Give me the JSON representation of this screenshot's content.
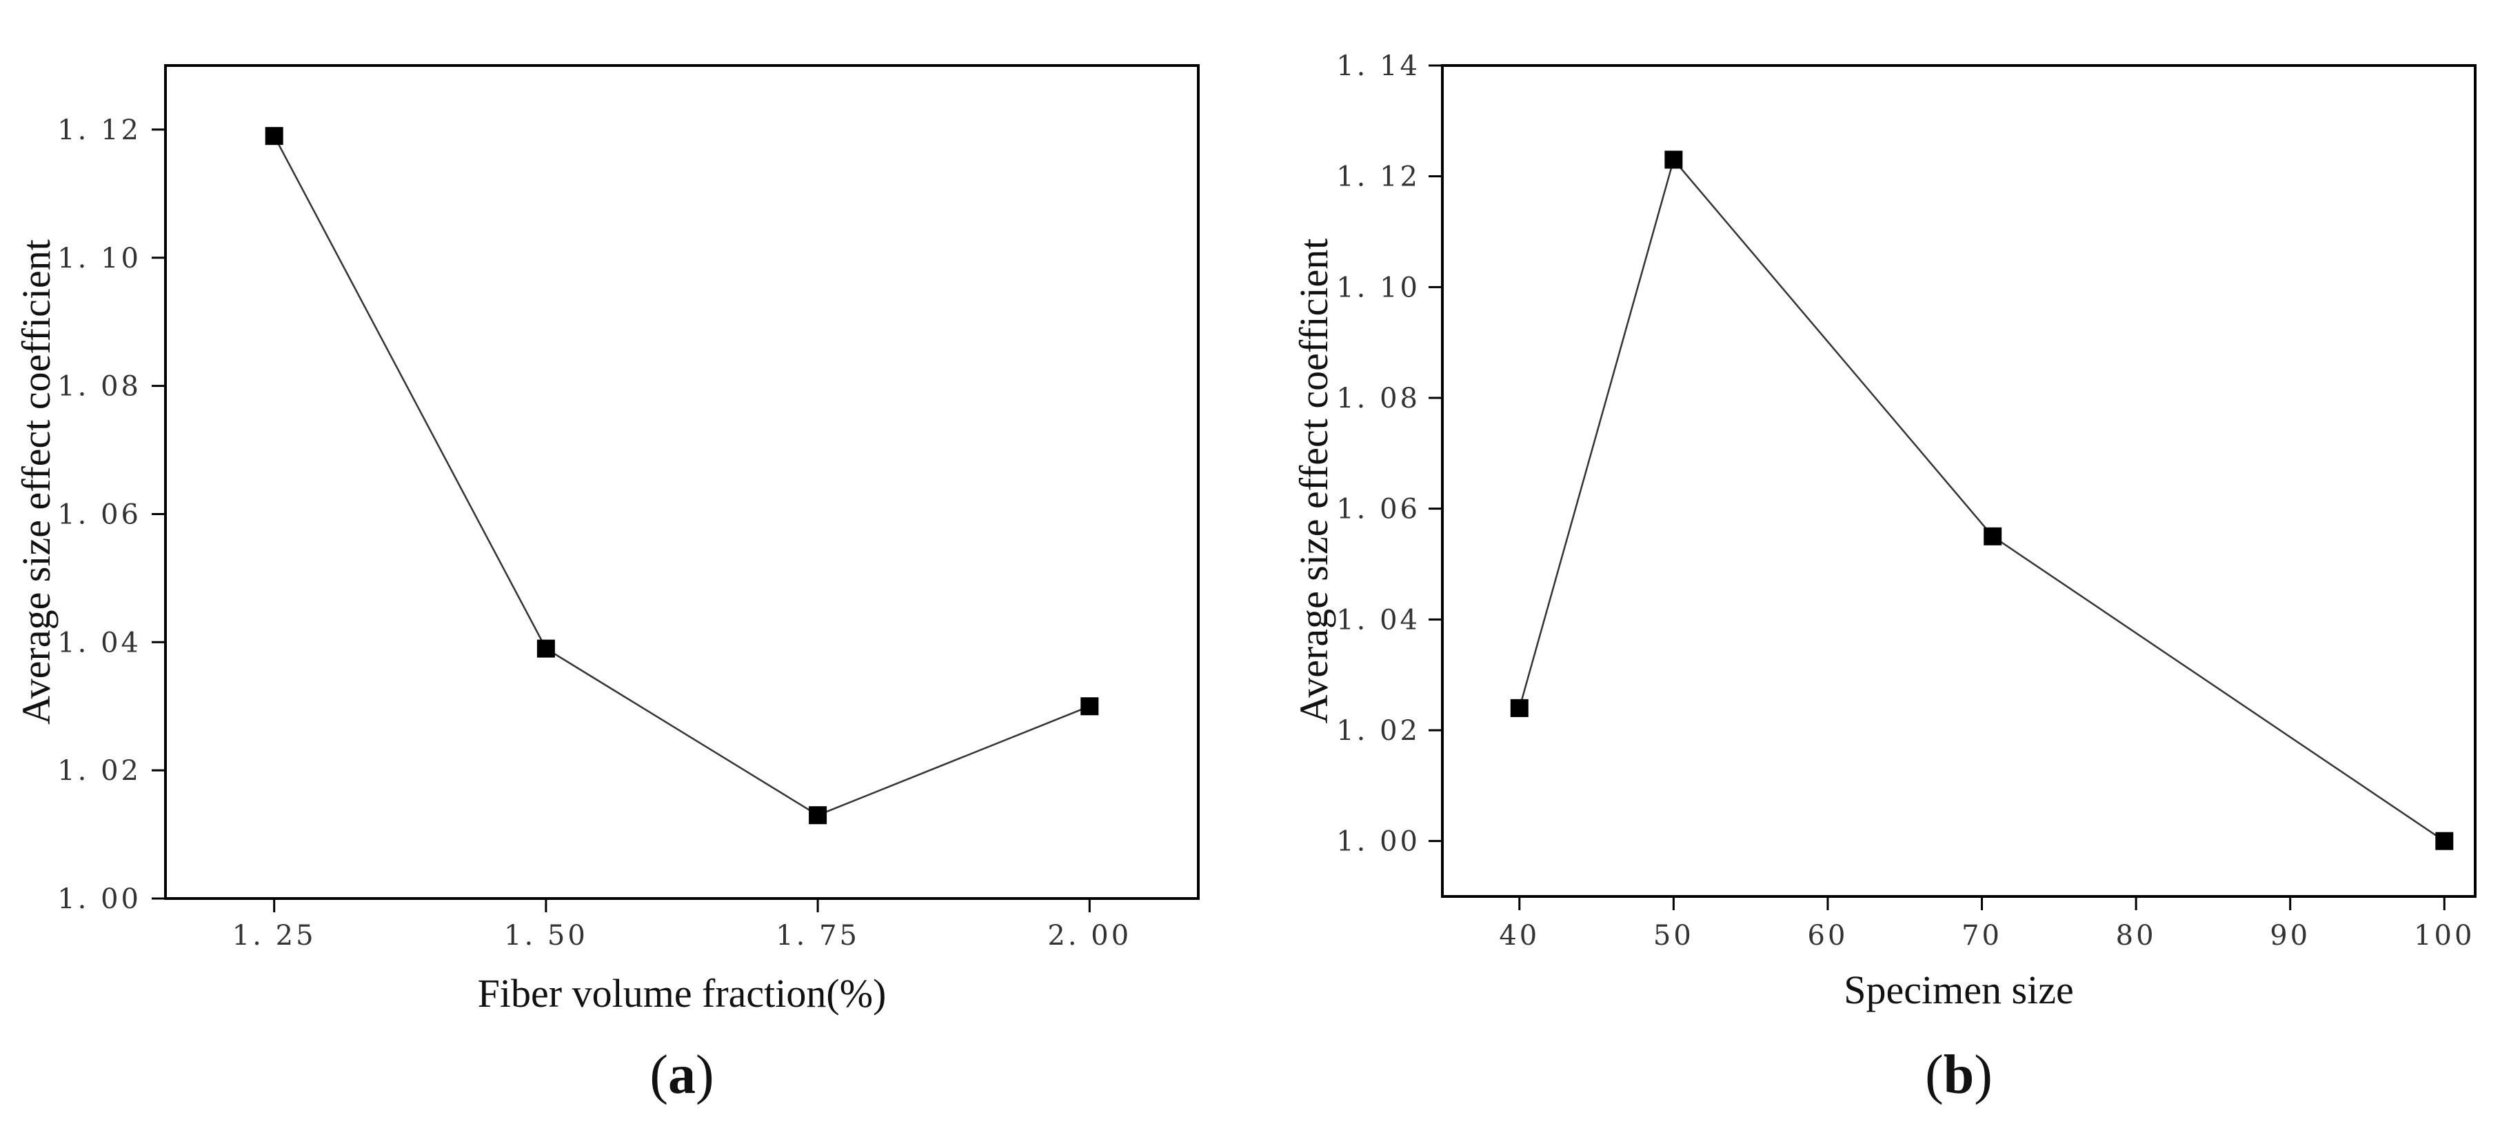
{
  "chart_data": [
    {
      "type": "line",
      "panel_label": "a",
      "title": "",
      "xlabel": "Fiber volume fraction(%)",
      "ylabel": "Average size effect coefficient",
      "x_tick_labels": [
        "1. 25",
        "1. 50",
        "1. 75",
        "2. 00"
      ],
      "y_tick_labels": [
        "1. 00",
        "1. 02",
        "1. 04",
        "1. 06",
        "1. 08",
        "1. 10",
        "1. 12"
      ],
      "x_ticks": [
        1.25,
        1.5,
        1.75,
        2.0
      ],
      "y_ticks": [
        1.0,
        1.02,
        1.04,
        1.06,
        1.08,
        1.1,
        1.12
      ],
      "xlim": [
        1.15,
        2.1
      ],
      "ylim": [
        1.0,
        1.13
      ],
      "grid": false,
      "legend": false,
      "marker": "square",
      "series": [
        {
          "x": [
            1.25,
            1.5,
            1.75,
            2.0
          ],
          "values": [
            1.119,
            1.039,
            1.013,
            1.03
          ]
        }
      ]
    },
    {
      "type": "line",
      "panel_label": "b",
      "title": "",
      "xlabel": "Specimen size",
      "ylabel": "Average size effect coefficient",
      "x_tick_labels": [
        "40",
        "50",
        "60",
        "70",
        "80",
        "90",
        "100"
      ],
      "y_tick_labels": [
        "1. 00",
        "1. 02",
        "1. 04",
        "1. 06",
        "1. 08",
        "1. 10",
        "1. 12",
        "1. 14"
      ],
      "x_ticks": [
        40,
        50,
        60,
        70,
        80,
        90,
        100
      ],
      "y_ticks": [
        1.0,
        1.02,
        1.04,
        1.06,
        1.08,
        1.1,
        1.12,
        1.14
      ],
      "xlim": [
        35,
        102
      ],
      "ylim": [
        0.99,
        1.14
      ],
      "grid": false,
      "legend": false,
      "marker": "square",
      "series": [
        {
          "x": [
            40,
            50,
            70.7,
            100
          ],
          "values": [
            1.024,
            1.123,
            1.055,
            1.0
          ]
        }
      ]
    }
  ],
  "colors": {
    "line": "#333333",
    "marker": "#000000",
    "axis": "#000000"
  }
}
